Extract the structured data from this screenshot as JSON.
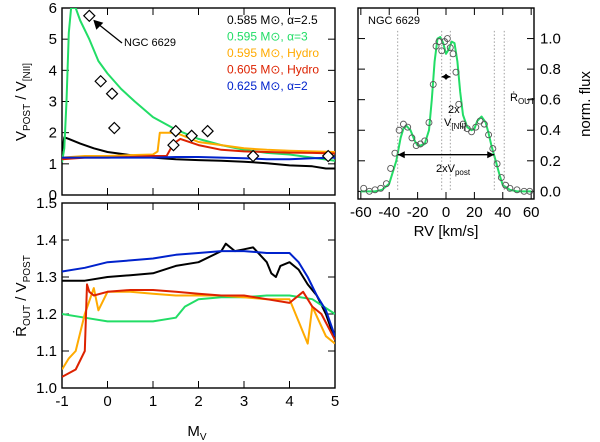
{
  "chart_data": [
    {
      "id": "top-left",
      "type": "line",
      "ylabel": "V_POST / V_[NII]",
      "xlim": [
        -1,
        5
      ],
      "ylim": [
        0,
        6
      ],
      "xticks": [
        -1,
        0,
        1,
        2,
        3,
        4,
        5
      ],
      "yticks": [
        0,
        1,
        2,
        3,
        4,
        5,
        6
      ],
      "annotation": "NGC 6629",
      "series": [
        {
          "name": "0.585 M_sun, alpha=2.5",
          "color": "#000000",
          "x": [
            -1.0,
            -0.95,
            -0.85,
            -0.6,
            -0.3,
            0.0,
            0.5,
            1.0,
            1.5,
            2.0,
            2.5,
            3.0,
            3.5,
            4.0,
            4.5,
            4.8,
            5.0
          ],
          "y": [
            1.4,
            1.85,
            1.8,
            1.65,
            1.5,
            1.38,
            1.28,
            1.2,
            1.15,
            1.12,
            1.1,
            1.07,
            1.02,
            0.95,
            0.92,
            0.85,
            0.85
          ]
        },
        {
          "name": "0.595 M_sun, alpha=3",
          "color": "#22dd66",
          "x": [
            -1.0,
            -0.95,
            -0.9,
            -0.85,
            -0.8,
            -0.7,
            -0.6,
            -0.4,
            -0.2,
            0.0,
            0.3,
            0.6,
            1.0,
            1.5,
            2.0,
            2.5,
            3.0,
            3.5,
            4.0,
            4.5,
            5.0
          ],
          "y": [
            1.05,
            1.5,
            3.0,
            5.2,
            6.0,
            6.0,
            5.6,
            5.0,
            4.3,
            3.9,
            3.4,
            3.0,
            2.5,
            2.1,
            1.8,
            1.6,
            1.45,
            1.35,
            1.3,
            1.2,
            1.1
          ]
        },
        {
          "name": "0.595 M_sun, Hydro",
          "color": "#ffaa00",
          "x": [
            -1.0,
            -0.5,
            0.0,
            0.5,
            1.0,
            1.1,
            1.15,
            1.5,
            2.0,
            2.5,
            3.0,
            3.5,
            4.0,
            4.5,
            5.0
          ],
          "y": [
            1.2,
            1.25,
            1.25,
            1.28,
            1.3,
            1.4,
            2.0,
            2.0,
            1.7,
            1.6,
            1.5,
            1.45,
            1.42,
            1.4,
            1.38
          ]
        },
        {
          "name": "0.605 M_sun, Hydro",
          "color": "#dd2200",
          "x": [
            -1.0,
            -0.5,
            0.0,
            0.5,
            1.0,
            1.3,
            1.45,
            1.6,
            2.0,
            2.5,
            3.0,
            3.5,
            4.0,
            4.5,
            5.0
          ],
          "y": [
            1.15,
            1.2,
            1.2,
            1.22,
            1.25,
            1.25,
            1.65,
            1.8,
            1.6,
            1.45,
            1.4,
            1.38,
            1.36,
            1.35,
            1.33
          ]
        },
        {
          "name": "0.625 M_sun, alpha=2",
          "color": "#0022cc",
          "x": [
            -1.0,
            -0.5,
            0.0,
            0.5,
            1.0,
            1.5,
            2.0,
            2.5,
            3.0,
            3.5,
            4.0,
            4.5,
            5.0
          ],
          "y": [
            1.2,
            1.2,
            1.2,
            1.2,
            1.2,
            1.22,
            1.22,
            1.2,
            1.18,
            1.15,
            1.15,
            1.18,
            1.2
          ]
        }
      ],
      "markers": {
        "name": "observations",
        "x": [
          -0.4,
          -0.15,
          0.1,
          0.15,
          1.45,
          1.5,
          1.85,
          2.2,
          3.2,
          4.85
        ],
        "y": [
          5.75,
          3.65,
          3.25,
          2.15,
          1.6,
          2.05,
          1.9,
          2.05,
          1.25,
          1.25
        ]
      },
      "legend": {
        "position": "top-right",
        "entries": [
          {
            "label": "0.585 M⊙, α=2.5",
            "color": "#000000"
          },
          {
            "label": "0.595 M⊙, α=3",
            "color": "#22dd66"
          },
          {
            "label": "0.595 M⊙, Hydro",
            "color": "#ffaa00"
          },
          {
            "label": "0.605 M⊙, Hydro",
            "color": "#dd2200"
          },
          {
            "label": "0.625 M⊙, α=2",
            "color": "#0022cc"
          }
        ]
      }
    },
    {
      "id": "bottom-left",
      "type": "line",
      "xlabel": "M_V",
      "ylabel": "R_OUT / V_POST",
      "xlim": [
        -1,
        5
      ],
      "ylim": [
        1.0,
        1.5
      ],
      "xticks": [
        -1,
        0,
        1,
        2,
        3,
        4,
        5
      ],
      "yticks": [
        1.0,
        1.1,
        1.2,
        1.3,
        1.4,
        1.5
      ],
      "series": [
        {
          "name": "0.585 M_sun, alpha=2.5",
          "color": "#000000",
          "x": [
            -1.0,
            -0.5,
            0.0,
            0.5,
            1.0,
            1.5,
            2.0,
            2.5,
            2.6,
            2.8,
            3.0,
            3.2,
            3.5,
            3.6,
            3.7,
            3.8,
            4.0,
            4.2,
            4.4,
            4.6,
            4.8,
            5.0
          ],
          "y": [
            1.29,
            1.29,
            1.3,
            1.305,
            1.31,
            1.33,
            1.34,
            1.37,
            1.39,
            1.37,
            1.375,
            1.38,
            1.34,
            1.31,
            1.3,
            1.33,
            1.34,
            1.32,
            1.28,
            1.25,
            1.2,
            1.13
          ]
        },
        {
          "name": "0.595 M_sun, alpha=3",
          "color": "#22dd66",
          "x": [
            -1.0,
            -0.5,
            0.0,
            0.5,
            1.0,
            1.5,
            1.7,
            2.0,
            2.5,
            3.0,
            3.5,
            4.0,
            4.5,
            5.0
          ],
          "y": [
            1.2,
            1.19,
            1.18,
            1.18,
            1.18,
            1.19,
            1.22,
            1.24,
            1.245,
            1.245,
            1.25,
            1.25,
            1.24,
            1.2
          ]
        },
        {
          "name": "0.595 M_sun, Hydro",
          "color": "#ffaa00",
          "x": [
            -1.0,
            -0.85,
            -0.7,
            -0.5,
            -0.3,
            -0.2,
            0.0,
            0.5,
            1.0,
            1.5,
            2.0,
            2.5,
            3.0,
            3.5,
            4.0,
            4.2,
            4.4,
            4.5,
            4.8,
            5.0
          ],
          "y": [
            1.05,
            1.08,
            1.1,
            1.2,
            1.27,
            1.21,
            1.26,
            1.26,
            1.255,
            1.25,
            1.25,
            1.25,
            1.245,
            1.24,
            1.24,
            1.18,
            1.12,
            1.22,
            1.14,
            1.12
          ]
        },
        {
          "name": "0.605 M_sun, Hydro",
          "color": "#dd2200",
          "x": [
            -1.0,
            -0.7,
            -0.5,
            -0.45,
            -0.4,
            -0.3,
            0.0,
            0.5,
            1.0,
            1.5,
            2.0,
            2.5,
            3.0,
            3.5,
            4.0,
            4.3,
            4.5,
            4.7,
            5.0
          ],
          "y": [
            1.03,
            1.05,
            1.1,
            1.28,
            1.26,
            1.25,
            1.26,
            1.265,
            1.265,
            1.26,
            1.255,
            1.25,
            1.25,
            1.24,
            1.23,
            1.26,
            1.22,
            1.2,
            1.13
          ]
        },
        {
          "name": "0.625 M_sun, alpha=2",
          "color": "#0022cc",
          "x": [
            -1.0,
            -0.5,
            0.0,
            0.5,
            1.0,
            1.5,
            2.0,
            2.5,
            3.0,
            3.5,
            4.0,
            4.2,
            4.4,
            4.6,
            4.8,
            5.0
          ],
          "y": [
            1.315,
            1.325,
            1.34,
            1.345,
            1.35,
            1.36,
            1.365,
            1.37,
            1.37,
            1.365,
            1.365,
            1.34,
            1.3,
            1.25,
            1.21,
            1.14
          ]
        }
      ]
    },
    {
      "id": "right",
      "type": "line",
      "title": "NGC 6629",
      "xlabel": "RV [km/s]",
      "ylabel": "norm. flux",
      "xlim": [
        -62,
        62
      ],
      "ylim": [
        -0.05,
        1.2
      ],
      "xticks": [
        -60,
        -40,
        -20,
        0,
        20,
        40,
        60
      ],
      "yticks": [
        0.0,
        0.2,
        0.4,
        0.6,
        0.8,
        1.0
      ],
      "series": [
        {
          "name": "model",
          "color": "#22dd66",
          "x": [
            -60,
            -50,
            -45,
            -40,
            -35,
            -32,
            -30,
            -28,
            -25,
            -22,
            -20,
            -18,
            -15,
            -12,
            -10,
            -8,
            -6,
            -4,
            -2,
            0,
            2,
            4,
            6,
            8,
            10,
            12,
            15,
            18,
            20,
            22,
            25,
            28,
            30,
            32,
            35,
            38,
            40,
            45,
            50,
            60
          ],
          "y": [
            0.0,
            0.0,
            0.01,
            0.05,
            0.2,
            0.35,
            0.41,
            0.43,
            0.4,
            0.33,
            0.3,
            0.3,
            0.31,
            0.4,
            0.6,
            0.85,
            1.0,
            1.01,
            0.97,
            0.9,
            0.93,
            0.98,
            0.97,
            0.85,
            0.65,
            0.5,
            0.42,
            0.4,
            0.41,
            0.46,
            0.49,
            0.45,
            0.38,
            0.3,
            0.2,
            0.1,
            0.04,
            0.01,
            0.0,
            0.0
          ]
        }
      ],
      "points": {
        "name": "observed",
        "x": [
          -58,
          -54,
          -50,
          -46,
          -42,
          -39,
          -36,
          -33,
          -30,
          -27,
          -24,
          -21,
          -18,
          -15,
          -12,
          -9,
          -7,
          -5,
          -3,
          -1,
          1,
          3,
          5,
          7,
          9,
          12,
          15,
          18,
          21,
          24,
          27,
          30,
          33,
          36,
          39,
          42,
          45,
          50,
          55,
          59
        ],
        "y": [
          0.02,
          0.0,
          0.01,
          0.02,
          0.05,
          0.15,
          0.25,
          0.4,
          0.44,
          0.42,
          0.35,
          0.3,
          0.31,
          0.33,
          0.45,
          0.7,
          0.95,
          0.98,
          0.92,
          0.98,
          1.0,
          0.94,
          0.9,
          0.78,
          0.57,
          0.44,
          0.41,
          0.39,
          0.42,
          0.46,
          0.44,
          0.37,
          0.28,
          0.18,
          0.09,
          0.04,
          0.02,
          0.01,
          0.0,
          0.0
        ]
      },
      "annotations": {
        "two_v_nii": "2x",
        "v_nii": "V[NII]",
        "two_v_post": "2xVpost",
        "r_out": "ROUT"
      }
    }
  ],
  "text": {
    "topleft_ylabel_a": "V",
    "topleft_ylabel_sub_a": "POST",
    "topleft_ylabel_b": " / V",
    "topleft_ylabel_sub_b": "[NII]",
    "bottom_ylabel_a": "Ṙ",
    "bottom_ylabel_sub_a": "OUT",
    "bottom_ylabel_b": " / V",
    "bottom_ylabel_sub_b": "POST",
    "bottom_xlabel_a": "M",
    "bottom_xlabel_sub": "V",
    "right_title": "NGC 6629",
    "right_xlabel": "RV [km/s]",
    "right_ylabel": "norm. flux",
    "ann_2x": "2x",
    "ann_vnii_a": "V",
    "ann_vnii_sub": "[NII]",
    "ann_2xvpost_a": "2xV",
    "ann_2xvpost_sub": "post",
    "ann_rout_a": "Ṙ",
    "ann_rout_sub": "OUT",
    "ngc_label": "NGC 6629"
  }
}
